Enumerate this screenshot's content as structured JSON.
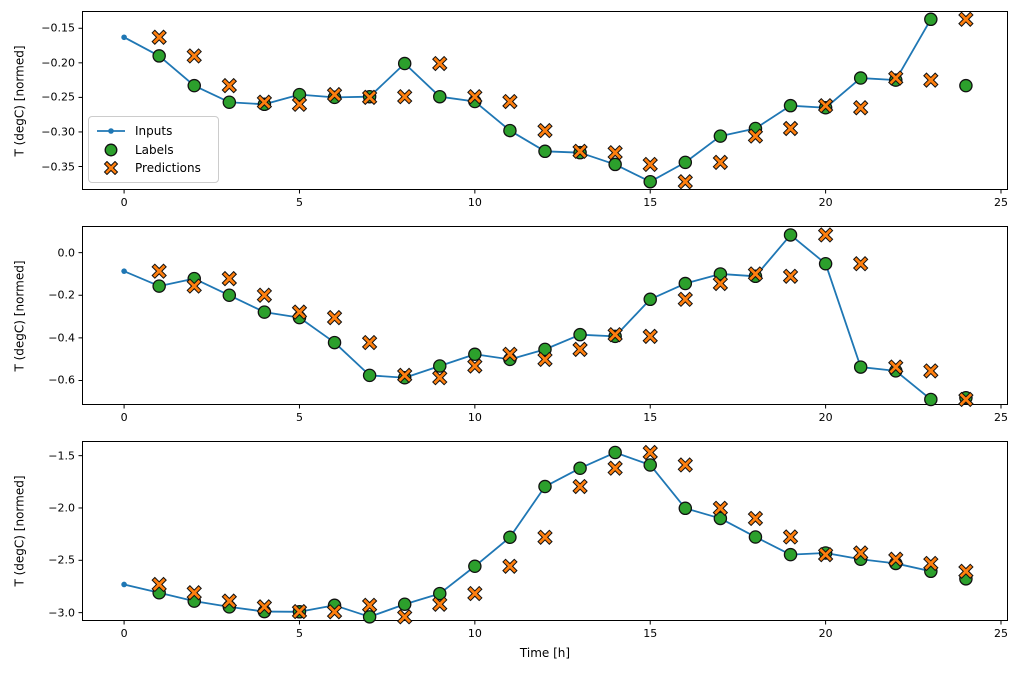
{
  "figure": {
    "xlabel": "Time [h]",
    "background": "#ffffff",
    "spine_color": "#000000",
    "legend": {
      "position": "upper-left-of-first-subplot",
      "items": [
        {
          "label": "Inputs",
          "marker": "line-with-dot",
          "color": "#1f77b4"
        },
        {
          "label": "Labels",
          "marker": "circle",
          "color": "#2ca02c"
        },
        {
          "label": "Predictions",
          "marker": "thick-x",
          "color": "#ff7f0e"
        }
      ]
    },
    "colors": {
      "inputs": "#1f77b4",
      "labels": "#2ca02c",
      "predictions": "#ff7f0e",
      "marker_edge": "#111111"
    }
  },
  "chart_data": [
    {
      "type": "line+scatter",
      "name": "subplot-1",
      "ylabel": "T (degC) [normed]",
      "grid": false,
      "xlim": [
        -1.2,
        25.2
      ],
      "ylim": [
        -0.384,
        -0.125
      ],
      "xticks": [
        {
          "v": 0,
          "label": "0"
        },
        {
          "v": 5,
          "label": "5"
        },
        {
          "v": 10,
          "label": "10"
        },
        {
          "v": 15,
          "label": "15"
        },
        {
          "v": 20,
          "label": "20"
        },
        {
          "v": 25,
          "label": "25"
        }
      ],
      "yticks": [
        {
          "v": -0.15,
          "label": "−0.15"
        },
        {
          "v": -0.2,
          "label": "−0.20"
        },
        {
          "v": -0.25,
          "label": "−0.25"
        },
        {
          "v": -0.3,
          "label": "−0.30"
        },
        {
          "v": -0.35,
          "label": "−0.35"
        }
      ],
      "series": {
        "inputs": {
          "x": [
            0,
            1,
            2,
            3,
            4,
            5,
            6,
            7,
            8,
            9,
            10,
            11,
            12,
            13,
            14,
            15,
            16,
            17,
            18,
            19,
            20,
            21,
            22,
            23
          ],
          "y": [
            -0.163,
            -0.19,
            -0.233,
            -0.257,
            -0.26,
            -0.246,
            -0.25,
            -0.249,
            -0.201,
            -0.249,
            -0.256,
            -0.298,
            -0.328,
            -0.33,
            -0.347,
            -0.372,
            -0.344,
            -0.306,
            -0.295,
            -0.262,
            -0.265,
            -0.222,
            -0.225,
            -0.137
          ]
        },
        "labels": {
          "x": [
            1,
            2,
            3,
            4,
            5,
            6,
            7,
            8,
            9,
            10,
            11,
            12,
            13,
            14,
            15,
            16,
            17,
            18,
            19,
            20,
            21,
            22,
            23,
            24
          ],
          "y": [
            -0.19,
            -0.233,
            -0.257,
            -0.26,
            -0.246,
            -0.25,
            -0.249,
            -0.201,
            -0.249,
            -0.256,
            -0.298,
            -0.328,
            -0.33,
            -0.347,
            -0.372,
            -0.344,
            -0.306,
            -0.295,
            -0.262,
            -0.265,
            -0.222,
            -0.225,
            -0.137,
            -0.233
          ]
        },
        "predictions": {
          "x": [
            1,
            2,
            3,
            4,
            5,
            6,
            7,
            8,
            9,
            10,
            11,
            12,
            13,
            14,
            15,
            16,
            17,
            18,
            19,
            20,
            21,
            22,
            23,
            24
          ],
          "y": [
            -0.163,
            -0.19,
            -0.233,
            -0.257,
            -0.26,
            -0.246,
            -0.25,
            -0.249,
            -0.201,
            -0.249,
            -0.256,
            -0.298,
            -0.328,
            -0.33,
            -0.347,
            -0.372,
            -0.344,
            -0.306,
            -0.295,
            -0.262,
            -0.265,
            -0.222,
            -0.225,
            -0.137
          ]
        }
      }
    },
    {
      "type": "line+scatter",
      "name": "subplot-2",
      "ylabel": "T (degC) [normed]",
      "grid": false,
      "xlim": [
        -1.2,
        25.2
      ],
      "ylim": [
        -0.715,
        0.125
      ],
      "xticks": [
        {
          "v": 0,
          "label": "0"
        },
        {
          "v": 5,
          "label": "5"
        },
        {
          "v": 10,
          "label": "10"
        },
        {
          "v": 15,
          "label": "15"
        },
        {
          "v": 20,
          "label": "20"
        },
        {
          "v": 25,
          "label": "25"
        }
      ],
      "yticks": [
        {
          "v": 0.0,
          "label": "0.0"
        },
        {
          "v": -0.2,
          "label": "−0.2"
        },
        {
          "v": -0.4,
          "label": "−0.4"
        },
        {
          "v": -0.6,
          "label": "−0.6"
        }
      ],
      "series": {
        "inputs": {
          "x": [
            0,
            1,
            2,
            3,
            4,
            5,
            6,
            7,
            8,
            9,
            10,
            11,
            12,
            13,
            14,
            15,
            16,
            17,
            18,
            19,
            20,
            21,
            22,
            23
          ],
          "y": [
            -0.087,
            -0.157,
            -0.122,
            -0.2,
            -0.279,
            -0.305,
            -0.422,
            -0.576,
            -0.587,
            -0.532,
            -0.477,
            -0.501,
            -0.454,
            -0.385,
            -0.393,
            -0.219,
            -0.145,
            -0.1,
            -0.111,
            0.083,
            -0.052,
            -0.537,
            -0.555,
            -0.689
          ]
        },
        "labels": {
          "x": [
            1,
            2,
            3,
            4,
            5,
            6,
            7,
            8,
            9,
            10,
            11,
            12,
            13,
            14,
            15,
            16,
            17,
            18,
            19,
            20,
            21,
            22,
            23,
            24
          ],
          "y": [
            -0.157,
            -0.122,
            -0.2,
            -0.279,
            -0.305,
            -0.422,
            -0.576,
            -0.587,
            -0.532,
            -0.477,
            -0.501,
            -0.454,
            -0.385,
            -0.393,
            -0.219,
            -0.145,
            -0.1,
            -0.111,
            0.083,
            -0.052,
            -0.537,
            -0.555,
            -0.689,
            -0.681
          ]
        },
        "predictions": {
          "x": [
            1,
            2,
            3,
            4,
            5,
            6,
            7,
            8,
            9,
            10,
            11,
            12,
            13,
            14,
            15,
            16,
            17,
            18,
            19,
            20,
            21,
            22,
            23,
            24
          ],
          "y": [
            -0.087,
            -0.157,
            -0.122,
            -0.2,
            -0.279,
            -0.305,
            -0.422,
            -0.576,
            -0.587,
            -0.532,
            -0.477,
            -0.501,
            -0.454,
            -0.385,
            -0.393,
            -0.219,
            -0.145,
            -0.1,
            -0.111,
            0.083,
            -0.052,
            -0.537,
            -0.555,
            -0.689
          ]
        }
      }
    },
    {
      "type": "line+scatter",
      "name": "subplot-3",
      "ylabel": "T (degC) [normed]",
      "grid": false,
      "xlim": [
        -1.2,
        25.2
      ],
      "ylim": [
        -3.08,
        -1.36
      ],
      "xticks": [
        {
          "v": 0,
          "label": "0"
        },
        {
          "v": 5,
          "label": "5"
        },
        {
          "v": 10,
          "label": "10"
        },
        {
          "v": 15,
          "label": "15"
        },
        {
          "v": 20,
          "label": "20"
        },
        {
          "v": 25,
          "label": "25"
        }
      ],
      "yticks": [
        {
          "v": -1.5,
          "label": "−1.5"
        },
        {
          "v": -2.0,
          "label": "−2.0"
        },
        {
          "v": -2.5,
          "label": "−2.5"
        },
        {
          "v": -3.0,
          "label": "−3.0"
        }
      ],
      "series": {
        "inputs": {
          "x": [
            0,
            1,
            2,
            3,
            4,
            5,
            6,
            7,
            8,
            9,
            10,
            11,
            12,
            13,
            14,
            15,
            16,
            17,
            18,
            19,
            20,
            21,
            22,
            23
          ],
          "y": [
            -2.731,
            -2.81,
            -2.89,
            -2.945,
            -2.99,
            -2.992,
            -2.93,
            -3.04,
            -2.92,
            -2.818,
            -2.557,
            -2.28,
            -1.795,
            -1.62,
            -1.47,
            -1.589,
            -2.003,
            -2.1,
            -2.277,
            -2.446,
            -2.43,
            -2.49,
            -2.53,
            -2.605
          ]
        },
        "labels": {
          "x": [
            1,
            2,
            3,
            4,
            5,
            6,
            7,
            8,
            9,
            10,
            11,
            12,
            13,
            14,
            15,
            16,
            17,
            18,
            19,
            20,
            21,
            22,
            23,
            24
          ],
          "y": [
            -2.81,
            -2.89,
            -2.945,
            -2.99,
            -2.992,
            -2.93,
            -3.04,
            -2.92,
            -2.818,
            -2.557,
            -2.28,
            -1.795,
            -1.62,
            -1.47,
            -1.589,
            -2.003,
            -2.1,
            -2.277,
            -2.446,
            -2.43,
            -2.49,
            -2.53,
            -2.605,
            -2.677
          ]
        },
        "predictions": {
          "x": [
            1,
            2,
            3,
            4,
            5,
            6,
            7,
            8,
            9,
            10,
            11,
            12,
            13,
            14,
            15,
            16,
            17,
            18,
            19,
            20,
            21,
            22,
            23,
            24
          ],
          "y": [
            -2.731,
            -2.81,
            -2.89,
            -2.945,
            -2.99,
            -2.992,
            -2.93,
            -3.04,
            -2.92,
            -2.818,
            -2.557,
            -2.28,
            -1.795,
            -1.62,
            -1.47,
            -1.589,
            -2.003,
            -2.1,
            -2.277,
            -2.446,
            -2.43,
            -2.49,
            -2.53,
            -2.605
          ]
        }
      }
    }
  ]
}
